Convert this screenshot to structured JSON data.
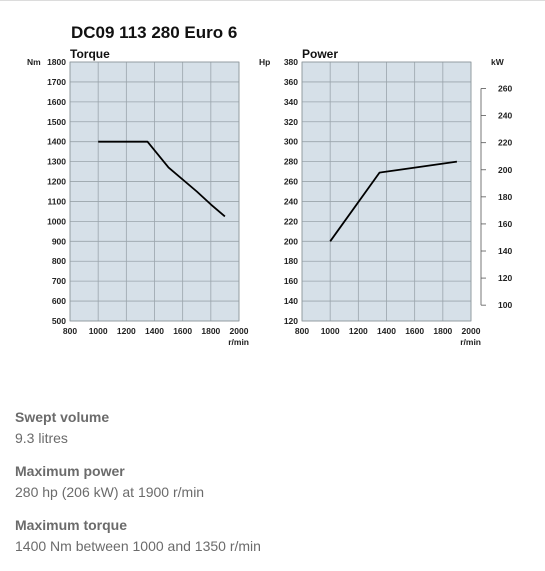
{
  "title": "DC09 113 280 Euro 6",
  "chart_data": [
    {
      "type": "line",
      "title": "Torque",
      "xlabel": "r/min",
      "ylabel": "Nm",
      "xlim": [
        800,
        2000
      ],
      "ylim": [
        500,
        1800
      ],
      "xticks": [
        800,
        1000,
        1200,
        1400,
        1600,
        1800,
        2000
      ],
      "yticks": [
        500,
        600,
        700,
        800,
        900,
        1000,
        1100,
        1200,
        1300,
        1400,
        1500,
        1600,
        1700,
        1800
      ],
      "grid": true,
      "series": [
        {
          "x": [
            1000,
            1350,
            1500,
            1700,
            1800,
            1900
          ],
          "y": [
            1400,
            1400,
            1270,
            1150,
            1085,
            1025
          ]
        }
      ]
    },
    {
      "type": "line",
      "title": "Power",
      "xlabel": "r/min",
      "ylabel": "Hp",
      "y2label": "kW",
      "xlim": [
        800,
        2000
      ],
      "ylim": [
        120,
        380
      ],
      "y2lim": [
        88.3,
        279.6
      ],
      "xticks": [
        800,
        1000,
        1200,
        1400,
        1600,
        1800,
        2000
      ],
      "yticks": [
        120,
        140,
        160,
        180,
        200,
        220,
        240,
        260,
        280,
        300,
        320,
        340,
        360,
        380
      ],
      "y2ticks": [
        100,
        120,
        140,
        160,
        180,
        200,
        220,
        240,
        260
      ],
      "grid": true,
      "series": [
        {
          "x": [
            1000,
            1350,
            1500,
            1700,
            1900
          ],
          "y": [
            200,
            269,
            272,
            276,
            280
          ]
        }
      ]
    }
  ],
  "specs": [
    {
      "label": "Swept volume",
      "value": "9.3 litres"
    },
    {
      "label": "Maximum power",
      "value": "280 hp (206 kW) at 1900 r/min"
    },
    {
      "label": "Maximum torque",
      "value": "1400 Nm between 1000 and 1350 r/min"
    }
  ]
}
